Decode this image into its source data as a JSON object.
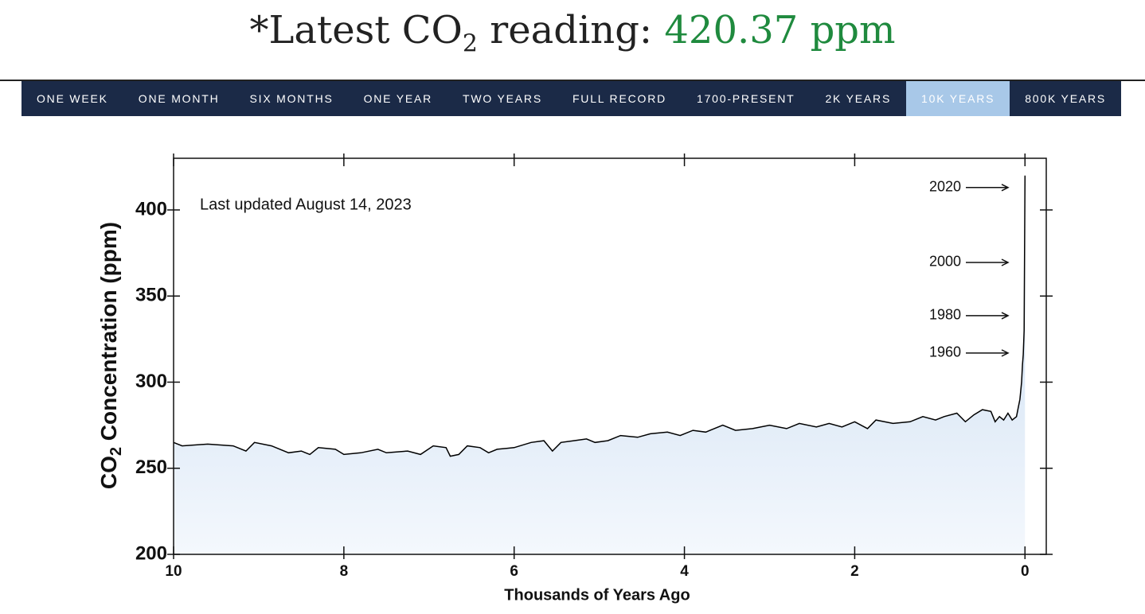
{
  "header": {
    "title_parts": [
      "*Latest CO",
      "2",
      " reading: "
    ],
    "reading": "420.37 ppm"
  },
  "nav": {
    "tabs": [
      "ONE WEEK",
      "ONE MONTH",
      "SIX MONTHS",
      "ONE YEAR",
      "TWO YEARS",
      "FULL RECORD",
      "1700-PRESENT",
      "2K YEARS",
      "10K YEARS",
      "800K YEARS"
    ],
    "selected_tab": 8
  },
  "chart_data": {
    "type": "area",
    "x_label": "Thousands of Years Ago",
    "y_label_parts": [
      "CO",
      "2",
      " Concentration (ppm)"
    ],
    "note": "Last updated August 14, 2023",
    "annotations": [
      {
        "text": "2020",
        "y": 413
      },
      {
        "text": "2000",
        "y": 369.5
      },
      {
        "text": "1980",
        "y": 338.6
      },
      {
        "text": "1960",
        "y": 316.9
      }
    ],
    "xlim": [
      10,
      -0.25
    ],
    "ylim": [
      200,
      430
    ],
    "xticks": [
      10,
      8,
      6,
      4,
      2,
      0
    ],
    "yticks": [
      200,
      250,
      300,
      350,
      400
    ],
    "color": "#000000",
    "fill_top": "#c3d8ef",
    "fill_bottom": "#f4f8fd",
    "x": [
      10,
      9.9,
      9.6,
      9.3,
      9.15,
      9.05,
      8.85,
      8.65,
      8.5,
      8.4,
      8.3,
      8.1,
      8.0,
      7.8,
      7.6,
      7.5,
      7.25,
      7.1,
      6.95,
      6.8,
      6.75,
      6.65,
      6.55,
      6.4,
      6.3,
      6.2,
      6.0,
      5.8,
      5.65,
      5.55,
      5.45,
      5.3,
      5.15,
      5.05,
      4.9,
      4.75,
      4.55,
      4.4,
      4.2,
      4.05,
      3.9,
      3.75,
      3.55,
      3.4,
      3.2,
      3.0,
      2.8,
      2.65,
      2.45,
      2.3,
      2.15,
      2.0,
      1.85,
      1.75,
      1.55,
      1.35,
      1.2,
      1.05,
      0.95,
      0.8,
      0.7,
      0.6,
      0.5,
      0.4,
      0.35,
      0.3,
      0.25,
      0.2,
      0.15,
      0.1,
      0.08,
      0.06,
      0.04,
      0.03,
      0.02,
      0.01,
      0
    ],
    "values": [
      265,
      263,
      264,
      263,
      260,
      265,
      263,
      259,
      260,
      258,
      262,
      261,
      258,
      259,
      261,
      259,
      260,
      258,
      263,
      262,
      257,
      258,
      263,
      262,
      259,
      261,
      262,
      265,
      266,
      260,
      265,
      266,
      267,
      265,
      266,
      269,
      268,
      270,
      271,
      269,
      272,
      271,
      275,
      272,
      273,
      275,
      273,
      276,
      274,
      276,
      274,
      277,
      273,
      278,
      276,
      277,
      280,
      278,
      280,
      282,
      277,
      281,
      284,
      283,
      277,
      280,
      278,
      282,
      278,
      280,
      285,
      290,
      300,
      310,
      316,
      330,
      420
    ]
  }
}
